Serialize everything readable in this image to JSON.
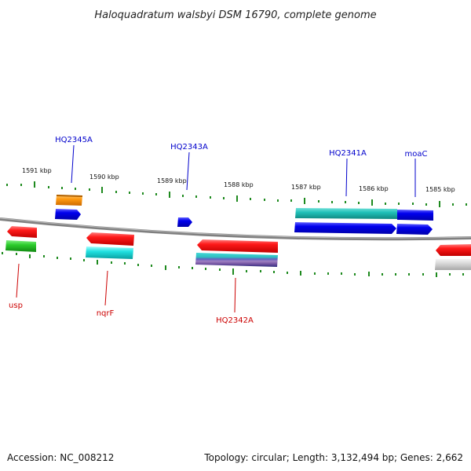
{
  "title": "Haloquadratum walsbyi DSM 16790, complete genome",
  "footer": {
    "accession": "Accession: NC_008212",
    "summary": "Topology: circular; Length: 3,132,494 bp; Genes: 2,662"
  },
  "colors": {
    "backbone": "#808080",
    "ticks": "#1e8a1e",
    "label_top": "#0000cc",
    "label_bottom": "#cc0000"
  },
  "scale_labels": [
    "1591 kbp",
    "1590 kbp",
    "1589 kbp",
    "1588 kbp",
    "1587 kbp",
    "1586 kbp",
    "1585 kbp"
  ],
  "gene_labels_top": [
    "HQ2345A",
    "HQ2343A",
    "HQ2341A",
    "moaC"
  ],
  "gene_labels_bottom": [
    "usp",
    "nqrF",
    "HQ2342A"
  ]
}
